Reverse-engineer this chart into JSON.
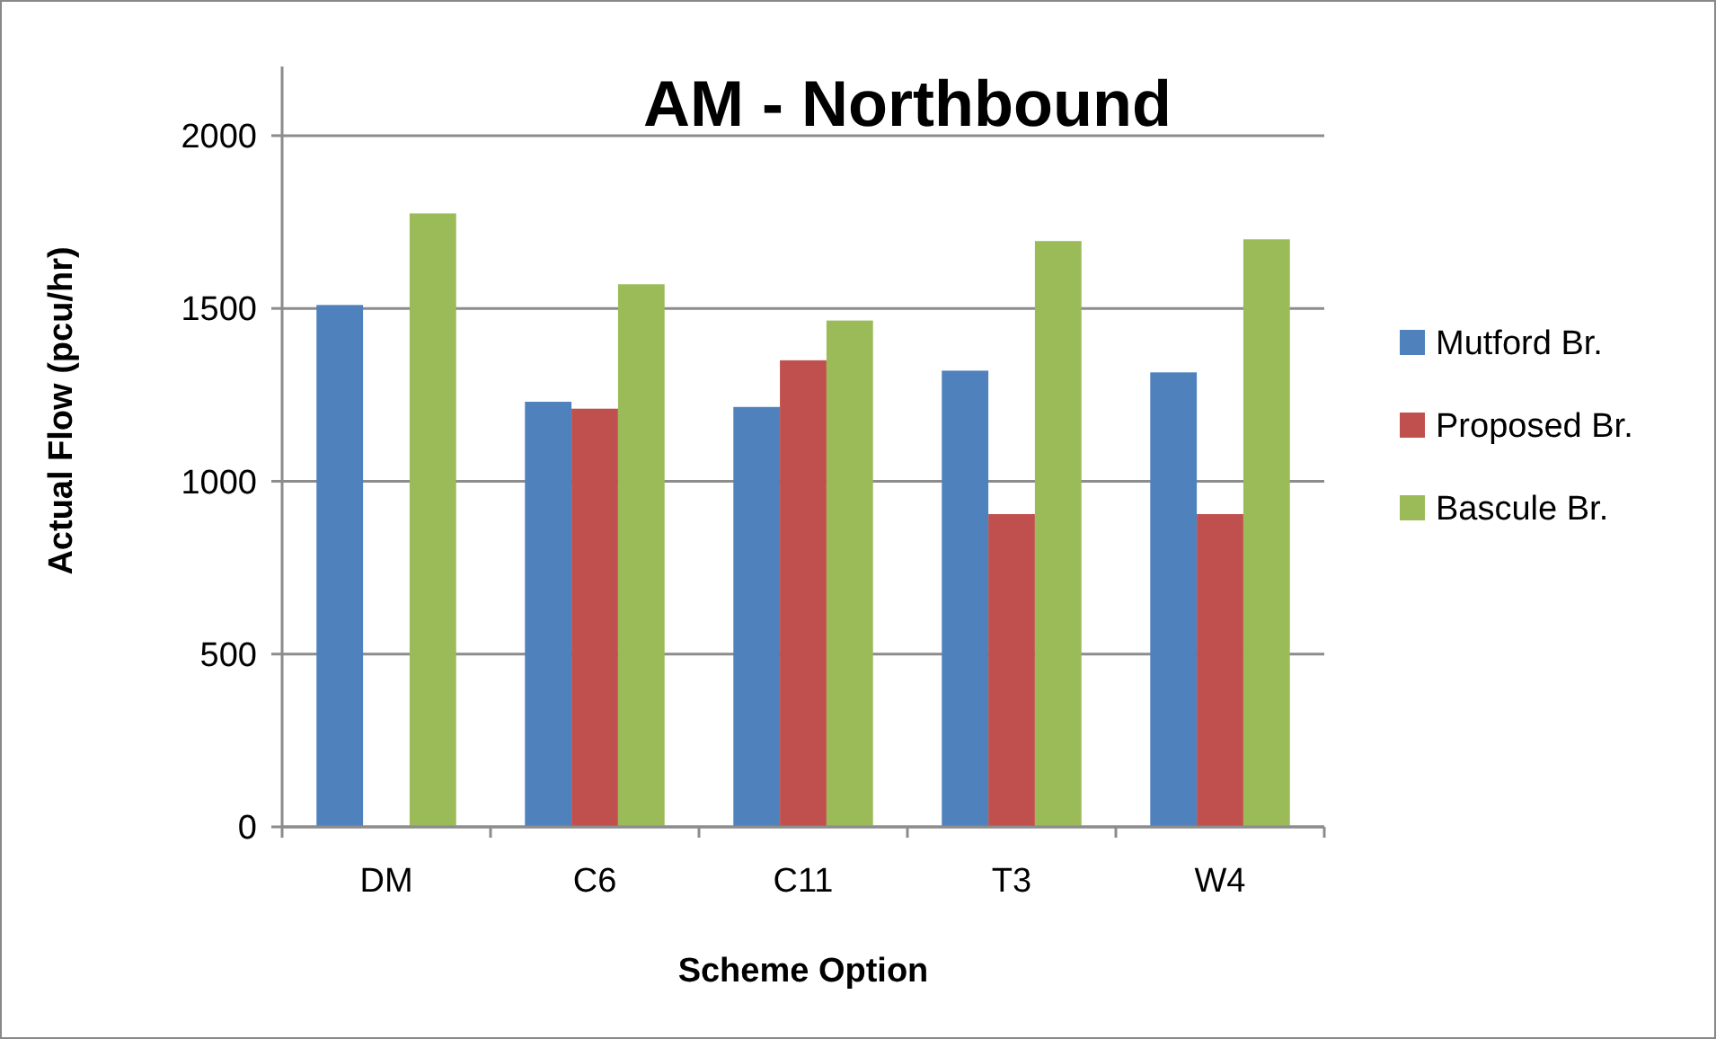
{
  "chart_data": {
    "type": "bar",
    "title": "AM - Northbound",
    "xlabel": "Scheme Option",
    "ylabel": "Actual Flow (pcu/hr)",
    "categories": [
      "DM",
      "C6",
      "C11",
      "T3",
      "W4"
    ],
    "series": [
      {
        "name": "Mutford Br.",
        "color": "#4f81bd",
        "values": [
          1510,
          1230,
          1215,
          1320,
          1315
        ]
      },
      {
        "name": "Proposed Br.",
        "color": "#c0504d",
        "values": [
          null,
          1210,
          1350,
          905,
          905
        ]
      },
      {
        "name": "Bascule Br.",
        "color": "#9bbb59",
        "values": [
          1775,
          1570,
          1465,
          1695,
          1700
        ]
      }
    ],
    "ylim": [
      0,
      2200
    ],
    "yticks": [
      0,
      500,
      1000,
      1500,
      2000
    ],
    "grid": "y",
    "legend": "right"
  }
}
